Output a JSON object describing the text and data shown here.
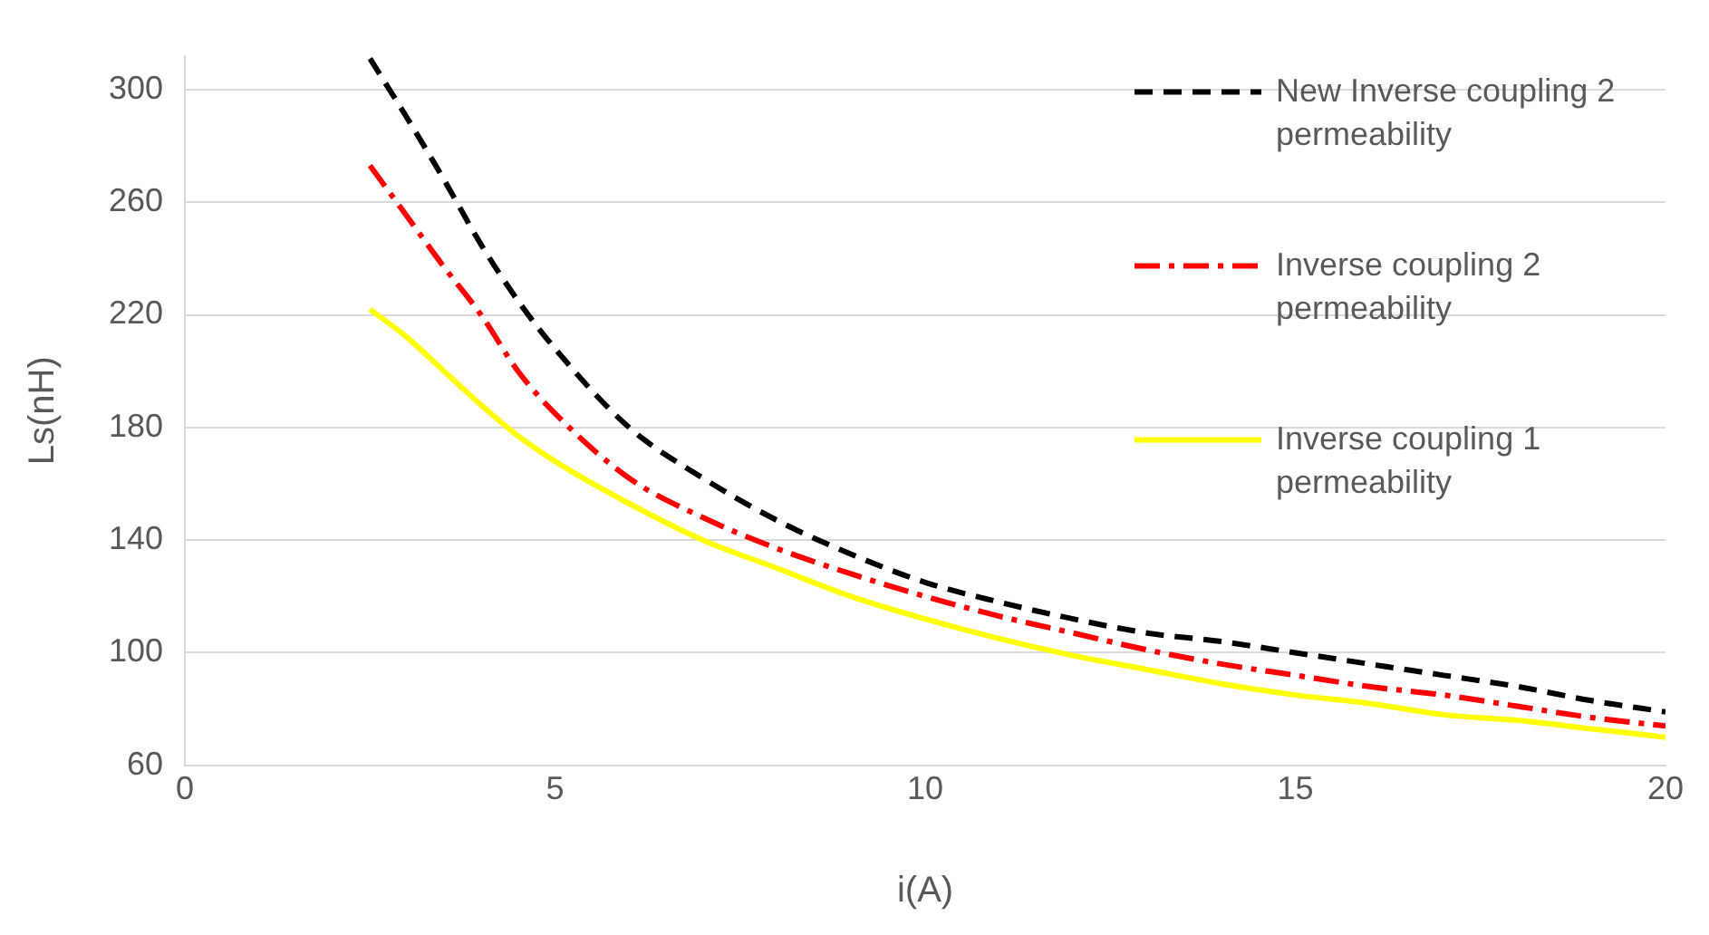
{
  "chart_data": {
    "type": "line",
    "xlabel": "i(A)",
    "ylabel": "Ls(nH)",
    "x": [
      2.5,
      3,
      3.5,
      4,
      4.5,
      5,
      6,
      7,
      8,
      9,
      10,
      11,
      12,
      13,
      14,
      15,
      16,
      17,
      18,
      19,
      20
    ],
    "xlim": [
      0,
      20
    ],
    "xticks": [
      0,
      5,
      10,
      15,
      20
    ],
    "ylim": [
      60,
      312
    ],
    "yticks": [
      60,
      100,
      140,
      180,
      220,
      260,
      300
    ],
    "grid": "y",
    "legend": "top right",
    "marker": "none",
    "series": [
      {
        "name": "New Inverse coupling 2 permeability",
        "color": "#000000",
        "line_style": "dashed",
        "values": [
          311,
          290,
          268,
          245,
          225,
          208,
          180,
          162,
          147,
          135,
          125,
          118,
          112,
          107,
          104,
          100,
          96,
          92,
          88,
          83,
          79
        ]
      },
      {
        "name": "Inverse coupling 2 permeability",
        "color": "#ff0000",
        "line_style": "dashdot",
        "values": [
          273,
          255,
          237,
          220,
          200,
          185,
          162,
          148,
          137,
          128,
          120,
          113,
          107,
          101,
          96,
          92,
          88,
          85,
          81,
          77,
          74
        ]
      },
      {
        "name": "Inverse coupling 1 permeability",
        "color": "#ffff00",
        "line_style": "solid",
        "values": [
          222,
          212,
          200,
          188,
          177,
          168,
          153,
          140,
          130,
          120,
          112,
          105,
          99,
          94,
          89,
          85,
          82,
          78,
          76,
          73,
          70
        ]
      }
    ]
  }
}
